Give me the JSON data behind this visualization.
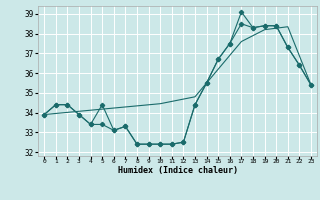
{
  "xlabel": "Humidex (Indice chaleur)",
  "background_color": "#cce8e8",
  "grid_color": "#ffffff",
  "line_color": "#1a6b6b",
  "xlim": [
    -0.5,
    23.5
  ],
  "ylim": [
    31.8,
    39.4
  ],
  "yticks": [
    32,
    33,
    34,
    35,
    36,
    37,
    38,
    39
  ],
  "xticks": [
    0,
    1,
    2,
    3,
    4,
    5,
    6,
    7,
    8,
    9,
    10,
    11,
    12,
    13,
    14,
    15,
    16,
    17,
    18,
    19,
    20,
    21,
    22,
    23
  ],
  "series1_x": [
    0,
    1,
    2,
    3,
    4,
    5,
    6,
    7,
    8,
    9,
    10,
    11,
    12,
    13,
    14,
    15,
    16,
    17,
    18,
    19,
    20,
    21,
    22,
    23
  ],
  "series1_y": [
    33.9,
    34.4,
    34.4,
    33.9,
    33.4,
    34.4,
    33.1,
    33.3,
    32.4,
    32.4,
    32.4,
    32.4,
    32.5,
    34.4,
    35.5,
    36.7,
    37.5,
    39.1,
    38.3,
    38.4,
    38.4,
    37.3,
    36.4,
    35.4
  ],
  "series2_x": [
    0,
    1,
    2,
    3,
    4,
    5,
    6,
    7,
    8,
    9,
    10,
    11,
    12,
    13,
    14,
    15,
    16,
    17,
    18,
    19,
    20,
    21,
    22,
    23
  ],
  "series2_y": [
    33.9,
    34.4,
    34.4,
    33.9,
    33.4,
    33.4,
    33.1,
    33.3,
    32.4,
    32.4,
    32.4,
    32.4,
    32.5,
    34.4,
    35.5,
    36.7,
    37.5,
    38.5,
    38.3,
    38.4,
    38.4,
    37.3,
    36.4,
    35.4
  ],
  "series3_x": [
    0,
    10,
    13,
    17,
    19,
    21,
    23
  ],
  "series3_y": [
    33.9,
    34.45,
    34.8,
    37.6,
    38.2,
    38.35,
    35.4
  ]
}
